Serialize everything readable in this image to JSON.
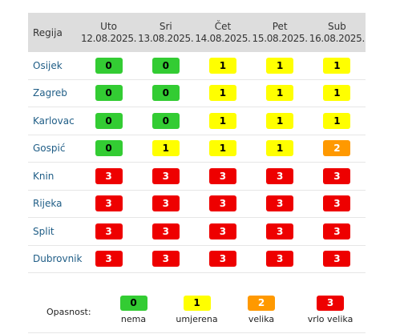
{
  "table": {
    "region_header": "Regija",
    "days": [
      {
        "name": "Uto",
        "date": "12.08.2025."
      },
      {
        "name": "Sri",
        "date": "13.08.2025."
      },
      {
        "name": "Čet",
        "date": "14.08.2025."
      },
      {
        "name": "Pet",
        "date": "15.08.2025."
      },
      {
        "name": "Sub",
        "date": "16.08.2025."
      }
    ],
    "rows": [
      {
        "region": "Osijek",
        "levels": [
          "0",
          "0",
          "1",
          "1",
          "1"
        ]
      },
      {
        "region": "Zagreb",
        "levels": [
          "0",
          "0",
          "1",
          "1",
          "1"
        ]
      },
      {
        "region": "Karlovac",
        "levels": [
          "0",
          "0",
          "1",
          "1",
          "1"
        ]
      },
      {
        "region": "Gospić",
        "levels": [
          "0",
          "1",
          "1",
          "1",
          "2"
        ]
      },
      {
        "region": "Knin",
        "levels": [
          "3",
          "3",
          "3",
          "3",
          "3"
        ]
      },
      {
        "region": "Rijeka",
        "levels": [
          "3",
          "3",
          "3",
          "3",
          "3"
        ]
      },
      {
        "region": "Split",
        "levels": [
          "3",
          "3",
          "3",
          "3",
          "3"
        ]
      },
      {
        "region": "Dubrovnik",
        "levels": [
          "3",
          "3",
          "3",
          "3",
          "3"
        ]
      }
    ]
  },
  "legend": {
    "title": "Opasnost:",
    "items": [
      {
        "value": "0",
        "label": "nema"
      },
      {
        "value": "1",
        "label": "umjerena"
      },
      {
        "value": "2",
        "label": "velika"
      },
      {
        "value": "3",
        "label": "vrlo velika"
      }
    ]
  },
  "colors": {
    "level_0": "#33cc33",
    "level_1": "#ffff00",
    "level_2": "#ff9900",
    "level_3": "#ee0000",
    "region_link": "#1f5d86",
    "header_bg": "#dddddd"
  }
}
